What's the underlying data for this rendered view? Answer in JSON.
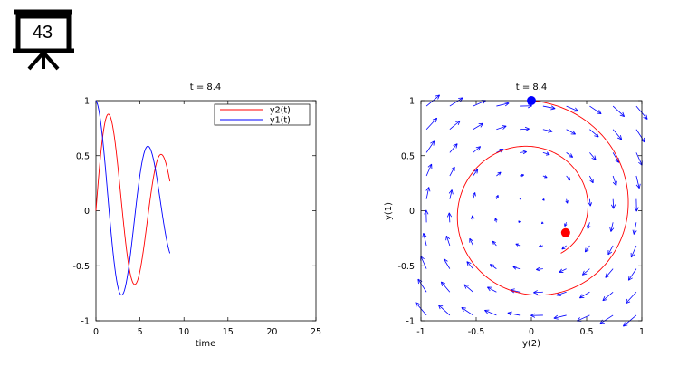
{
  "slide": {
    "number": "43"
  },
  "colors": {
    "y1": "#0000ff",
    "y2": "#ff0000",
    "quiver": "#0000ff",
    "start_dot": "#0000ff",
    "end_dot": "#ff0000"
  },
  "chart_data": [
    {
      "type": "line",
      "title": "t = 8.4",
      "xlabel": "time",
      "ylabel": "",
      "xlim": [
        0,
        25
      ],
      "ylim": [
        -1,
        1
      ],
      "xticks": [
        "0",
        "5",
        "10",
        "15",
        "20",
        "25"
      ],
      "yticks": [
        "1",
        "0.5",
        "0",
        "-0.5",
        "-1"
      ],
      "legend_position": "top-right",
      "legend": [
        "y2(t)",
        "y1(t)"
      ],
      "grid": false,
      "series": [
        {
          "name": "y2(t)",
          "color": "#ff0000",
          "description_x_end": 8.4
        },
        {
          "name": "y1(t)",
          "color": "#0000ff",
          "description_x_end": 8.4
        }
      ]
    },
    {
      "type": "scatter",
      "title": "t = 8.4",
      "xlabel": "y(2)",
      "ylabel": "y(1)",
      "xlim": [
        -1,
        1
      ],
      "ylim": [
        -1,
        1
      ],
      "xticks": [
        "-1",
        "-0.5",
        "0",
        "0.5",
        "1"
      ],
      "yticks": [
        "1",
        "0.5",
        "0",
        "-0.5",
        "-1"
      ],
      "grid": false,
      "start_point": [
        0,
        1
      ],
      "end_point": [
        0.31,
        -0.2
      ],
      "trajectory_color": "#ff0000",
      "quiver_color": "#0000ff"
    }
  ]
}
